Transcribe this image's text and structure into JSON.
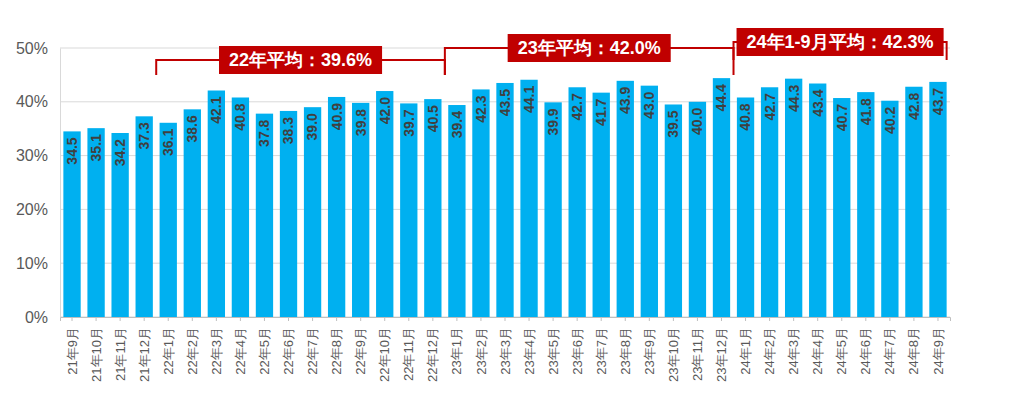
{
  "chart_data": {
    "type": "bar",
    "categories": [
      "21年9月",
      "21年10月",
      "21年11月",
      "21年12月",
      "22年1月",
      "22年2月",
      "22年3月",
      "22年4月",
      "22年5月",
      "22年6月",
      "22年7月",
      "22年8月",
      "22年9月",
      "22年10月",
      "22年11月",
      "22年12月",
      "23年1月",
      "23年2月",
      "23年3月",
      "23年4月",
      "23年5月",
      "23年6月",
      "23年7月",
      "23年8月",
      "23年9月",
      "23年10月",
      "23年11月",
      "23年12月",
      "24年1月",
      "24年2月",
      "24年3月",
      "24年4月",
      "24年5月",
      "24年6月",
      "24年7月",
      "24年8月",
      "24年9月"
    ],
    "values": [
      34.5,
      35.1,
      34.2,
      37.3,
      36.1,
      38.6,
      42.1,
      40.8,
      37.8,
      38.3,
      39.0,
      40.9,
      39.8,
      42.0,
      39.7,
      40.5,
      39.4,
      42.3,
      43.5,
      44.1,
      39.9,
      42.7,
      41.7,
      43.9,
      43.0,
      39.5,
      40.0,
      44.4,
      40.8,
      42.7,
      44.3,
      43.4,
      40.7,
      41.8,
      40.2,
      42.8,
      43.7
    ],
    "value_labels": [
      "34.5",
      "35.1",
      "34.2",
      "37.3",
      "36.1",
      "38.6",
      "42.1",
      "40.8",
      "37.8",
      "38.3",
      "39.0",
      "40.9",
      "39.8",
      "42.0",
      "39.7",
      "40.5",
      "39.4",
      "42.3",
      "43.5",
      "44.1",
      "39.9",
      "42.7",
      "41.7",
      "43.9",
      "43.0",
      "39.5",
      "40.0",
      "44.4",
      "40.8",
      "42.7",
      "44.3",
      "43.4",
      "40.7",
      "41.8",
      "40.2",
      "42.8",
      "43.7"
    ],
    "color": "#00b0f0",
    "ylim": [
      0,
      50
    ],
    "yticks": [
      {
        "value": 0,
        "label": "0%"
      },
      {
        "value": 10,
        "label": "10%"
      },
      {
        "value": 20,
        "label": "20%"
      },
      {
        "value": 30,
        "label": "30%"
      },
      {
        "value": 40,
        "label": "40%"
      },
      {
        "value": 50,
        "label": "50%"
      }
    ],
    "grid": true,
    "data_labels": true,
    "annotations": [
      {
        "text": "22年平均：39.6%",
        "start": "22年1月",
        "end": "22年12月"
      },
      {
        "text": "23年平均：42.0%",
        "start": "23年1月",
        "end": "23年12月"
      },
      {
        "text": "24年1-9月平均：42.3%",
        "start": "24年1月",
        "end": "24年9月"
      }
    ]
  }
}
